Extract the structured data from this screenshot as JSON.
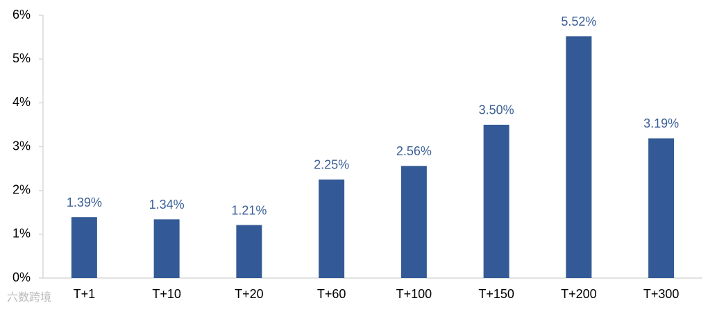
{
  "chart_data": {
    "type": "bar",
    "categories": [
      "T+1",
      "T+10",
      "T+20",
      "T+60",
      "T+100",
      "T+150",
      "T+200",
      "T+300"
    ],
    "values": [
      1.39,
      1.34,
      1.21,
      2.25,
      2.56,
      3.5,
      5.52,
      3.19
    ],
    "value_labels": [
      "1.39%",
      "1.34%",
      "1.21%",
      "2.25%",
      "2.56%",
      "3.50%",
      "5.52%",
      "3.19%"
    ],
    "color": "#335a96",
    "label_color": "#3a5f96",
    "ylim": [
      0,
      6
    ],
    "yticks": [
      {
        "value": 0,
        "label": "0%"
      },
      {
        "value": 1,
        "label": "1%"
      },
      {
        "value": 2,
        "label": "2%"
      },
      {
        "value": 3,
        "label": "3%"
      },
      {
        "value": 4,
        "label": "4%"
      },
      {
        "value": 5,
        "label": "5%"
      },
      {
        "value": 6,
        "label": "6%"
      }
    ],
    "grid": false,
    "watermark": "六数跨境"
  }
}
